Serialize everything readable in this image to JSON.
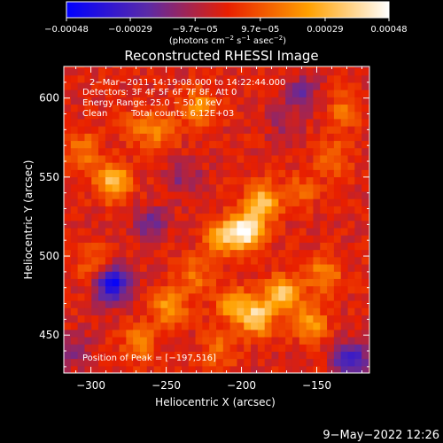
{
  "chart_data": {
    "type": "heatmap",
    "title": "Reconstructed RHESSI Image",
    "xlabel": "Heliocentric X (arcsec)",
    "ylabel": "Heliocentric Y (arcsec)",
    "xlim": [
      -318,
      -115
    ],
    "ylim": [
      426,
      620
    ],
    "x_ticks": [
      -300,
      -250,
      -200,
      -150
    ],
    "y_ticks": [
      450,
      500,
      550,
      600
    ],
    "x_tick_labels": [
      "−300",
      "−250",
      "−200",
      "−150"
    ],
    "y_tick_labels": [
      "450",
      "500",
      "550",
      "600"
    ],
    "colorbar": {
      "range": [
        -0.00048,
        0.00048
      ],
      "ticks": [
        -0.00048,
        -0.00029,
        -9.7e-05,
        9.7e-05,
        0.00029,
        0.00048
      ],
      "tick_labels": [
        "−0.00048",
        "−0.00029",
        "−9.7e−05",
        "9.7e−05",
        "0.00029",
        "0.00048"
      ],
      "unit_parts": [
        "(photons cm",
        "−2",
        " s",
        "−1",
        " asec",
        "−2",
        ")"
      ]
    },
    "annotations": {
      "time_range": "2−Mar−2011 14:19:08.000 to 14:22:44.000",
      "detectors": "Detectors: 3F 4F 5F 6F 7F 8F, Att 0",
      "energy_range": "Energy Range: 25.0 − 50.0 keV",
      "method": "Clean",
      "total_counts": "Total counts: 6.12E+03",
      "peak": "Position of Peak = [−197,516]"
    },
    "peak": {
      "x": -197,
      "y": 516
    },
    "grid": false,
    "colormap": [
      "#0000ff",
      "#5a2aa8",
      "#e81f00",
      "#ffa000",
      "#ffffff"
    ],
    "sources": [
      {
        "x": -197,
        "y": 516,
        "value": 0.00048
      },
      {
        "x": -186,
        "y": 535,
        "value": 0.00034
      },
      {
        "x": -213,
        "y": 512,
        "value": 0.00026
      },
      {
        "x": -190,
        "y": 462,
        "value": 0.00038
      },
      {
        "x": -173,
        "y": 477,
        "value": 0.00034
      },
      {
        "x": -155,
        "y": 458,
        "value": 0.00026
      },
      {
        "x": -207,
        "y": 470,
        "value": 0.00024
      },
      {
        "x": -145,
        "y": 489,
        "value": 0.00022
      },
      {
        "x": -285,
        "y": 547,
        "value": 0.00036
      },
      {
        "x": -305,
        "y": 567,
        "value": 0.00018
      },
      {
        "x": -228,
        "y": 595,
        "value": 0.00022
      },
      {
        "x": -253,
        "y": 580,
        "value": 0.00018
      },
      {
        "x": -268,
        "y": 582,
        "value": 0.00014
      },
      {
        "x": -248,
        "y": 468,
        "value": 0.00024
      },
      {
        "x": -231,
        "y": 488,
        "value": 0.00018
      },
      {
        "x": -268,
        "y": 445,
        "value": 0.0002
      },
      {
        "x": -298,
        "y": 495,
        "value": 0.00014
      },
      {
        "x": -140,
        "y": 563,
        "value": 0.00018
      },
      {
        "x": -132,
        "y": 592,
        "value": 0.00015
      },
      {
        "x": -161,
        "y": 541,
        "value": 0.00014
      },
      {
        "x": -215,
        "y": 440,
        "value": 0.00016
      },
      {
        "x": -286,
        "y": 482,
        "value": -0.00042
      },
      {
        "x": -260,
        "y": 520,
        "value": -0.00018
      },
      {
        "x": -128,
        "y": 434,
        "value": -0.00032
      },
      {
        "x": -160,
        "y": 603,
        "value": -0.00016
      },
      {
        "x": -238,
        "y": 550,
        "value": -0.00014
      },
      {
        "x": -172,
        "y": 583,
        "value": -0.0001
      },
      {
        "x": -310,
        "y": 440,
        "value": -0.00012
      }
    ]
  },
  "footer": {
    "timestamp": "9−May−2022 12:26"
  }
}
